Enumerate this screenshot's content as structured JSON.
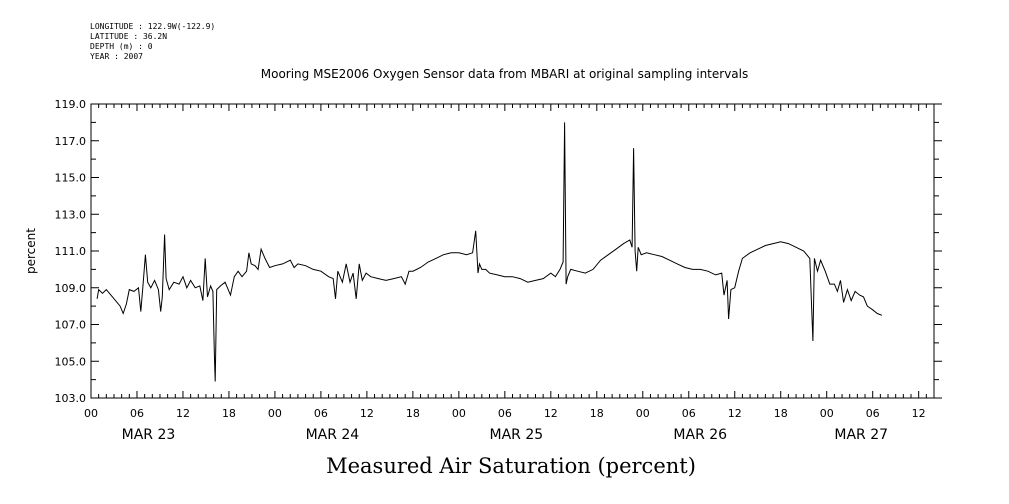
{
  "header": {
    "meta_lines": [
      "LONGITUDE : 122.9W(-122.9)",
      "LATITUDE : 36.2N",
      "DEPTH (m) : 0",
      "YEAR : 2007"
    ]
  },
  "chart_data": {
    "type": "line",
    "title": "Mooring MSE2006 Oxygen Sensor data from MBARI at original sampling intervals",
    "xlabel": "Measured Air Saturation (percent)",
    "ylabel": "percent",
    "ylim": [
      103.0,
      119.0
    ],
    "xlim_hours": [
      0,
      110
    ],
    "x_unit": "hours from MAR 23 00",
    "yticks": [
      "103.0",
      "105.0",
      "107.0",
      "109.0",
      "111.0",
      "113.0",
      "115.0",
      "117.0",
      "119.0"
    ],
    "ytick_values": [
      103,
      105,
      107,
      109,
      111,
      113,
      115,
      117,
      119
    ],
    "xtick_hours": [
      0,
      6,
      12,
      18,
      24,
      30,
      36,
      42,
      48,
      54,
      60,
      66,
      72,
      78,
      84,
      90,
      96,
      102,
      108
    ],
    "xtick_labels": [
      "00",
      "06",
      "12",
      "18",
      "00",
      "06",
      "12",
      "18",
      "00",
      "06",
      "12",
      "18",
      "00",
      "06",
      "12",
      "18",
      "00",
      "06",
      "12"
    ],
    "date_labels": [
      {
        "label": "MAR 23",
        "hour": 7.5
      },
      {
        "label": "MAR 24",
        "hour": 31.5
      },
      {
        "label": "MAR 25",
        "hour": 55.5
      },
      {
        "label": "MAR 26",
        "hour": 79.5
      },
      {
        "label": "MAR 27",
        "hour": 100.5
      }
    ],
    "series": [
      {
        "values": [
          [
            0.8,
            108.4
          ],
          [
            1.0,
            108.9
          ],
          [
            1.5,
            108.7
          ],
          [
            2.0,
            108.9
          ],
          [
            2.6,
            108.6
          ],
          [
            3.2,
            108.3
          ],
          [
            3.8,
            108.0
          ],
          [
            4.2,
            107.6
          ],
          [
            4.6,
            108.1
          ],
          [
            5.0,
            108.9
          ],
          [
            5.6,
            108.8
          ],
          [
            6.2,
            109.0
          ],
          [
            6.5,
            107.7
          ],
          [
            6.8,
            109.2
          ],
          [
            7.1,
            110.8
          ],
          [
            7.4,
            109.3
          ],
          [
            7.8,
            109.0
          ],
          [
            8.3,
            109.4
          ],
          [
            8.8,
            108.9
          ],
          [
            9.1,
            107.7
          ],
          [
            9.3,
            108.5
          ],
          [
            9.6,
            111.9
          ],
          [
            9.8,
            109.5
          ],
          [
            10.2,
            108.9
          ],
          [
            10.8,
            109.3
          ],
          [
            11.5,
            109.2
          ],
          [
            12.0,
            109.6
          ],
          [
            12.5,
            109.0
          ],
          [
            13.0,
            109.4
          ],
          [
            13.6,
            109.0
          ],
          [
            14.2,
            109.1
          ],
          [
            14.6,
            108.3
          ],
          [
            14.9,
            110.6
          ],
          [
            15.2,
            108.5
          ],
          [
            15.6,
            109.1
          ],
          [
            15.9,
            108.8
          ],
          [
            16.1,
            105.3
          ],
          [
            16.2,
            103.9
          ],
          [
            16.4,
            108.9
          ],
          [
            16.9,
            109.1
          ],
          [
            17.5,
            109.3
          ],
          [
            18.2,
            108.6
          ],
          [
            18.7,
            109.6
          ],
          [
            19.2,
            109.9
          ],
          [
            19.7,
            109.6
          ],
          [
            20.3,
            109.9
          ],
          [
            20.6,
            110.9
          ],
          [
            20.9,
            110.3
          ],
          [
            21.4,
            110.2
          ],
          [
            21.8,
            110.0
          ],
          [
            22.2,
            111.1
          ],
          [
            22.7,
            110.6
          ],
          [
            23.3,
            110.1
          ],
          [
            24.0,
            110.2
          ],
          [
            25.0,
            110.3
          ],
          [
            26.0,
            110.5
          ],
          [
            26.5,
            110.1
          ],
          [
            27.0,
            110.3
          ],
          [
            28.0,
            110.2
          ],
          [
            29.0,
            110.0
          ],
          [
            30.0,
            109.9
          ],
          [
            31.0,
            109.6
          ],
          [
            31.6,
            109.5
          ],
          [
            31.9,
            108.4
          ],
          [
            32.2,
            109.9
          ],
          [
            32.8,
            109.3
          ],
          [
            33.3,
            110.3
          ],
          [
            33.8,
            109.3
          ],
          [
            34.2,
            109.8
          ],
          [
            34.6,
            108.4
          ],
          [
            35.0,
            110.3
          ],
          [
            35.4,
            109.4
          ],
          [
            35.9,
            109.8
          ],
          [
            36.5,
            109.6
          ],
          [
            37.5,
            109.5
          ],
          [
            38.5,
            109.4
          ],
          [
            39.5,
            109.5
          ],
          [
            40.5,
            109.6
          ],
          [
            41.0,
            109.2
          ],
          [
            41.5,
            109.9
          ],
          [
            42.0,
            109.9
          ],
          [
            43.0,
            110.1
          ],
          [
            44.0,
            110.4
          ],
          [
            45.0,
            110.6
          ],
          [
            46.0,
            110.8
          ],
          [
            47.0,
            110.9
          ],
          [
            48.0,
            110.9
          ],
          [
            49.0,
            110.8
          ],
          [
            49.8,
            110.9
          ],
          [
            50.2,
            112.1
          ],
          [
            50.5,
            109.8
          ],
          [
            50.7,
            110.3
          ],
          [
            51.0,
            110.0
          ],
          [
            51.5,
            110.0
          ],
          [
            52.0,
            109.8
          ],
          [
            53.0,
            109.7
          ],
          [
            54.0,
            109.6
          ],
          [
            55.0,
            109.6
          ],
          [
            56.0,
            109.5
          ],
          [
            57.0,
            109.3
          ],
          [
            58.0,
            109.4
          ],
          [
            59.0,
            109.5
          ],
          [
            60.0,
            109.8
          ],
          [
            60.6,
            109.6
          ],
          [
            61.2,
            110.0
          ],
          [
            61.6,
            110.4
          ],
          [
            61.8,
            118.0
          ],
          [
            62.0,
            109.2
          ],
          [
            62.2,
            109.6
          ],
          [
            62.6,
            110.0
          ],
          [
            63.5,
            109.9
          ],
          [
            64.5,
            109.8
          ],
          [
            65.5,
            110.0
          ],
          [
            66.5,
            110.5
          ],
          [
            67.5,
            110.8
          ],
          [
            68.5,
            111.1
          ],
          [
            69.5,
            111.4
          ],
          [
            70.3,
            111.6
          ],
          [
            70.6,
            111.2
          ],
          [
            70.8,
            116.6
          ],
          [
            71.0,
            111.0
          ],
          [
            71.2,
            109.9
          ],
          [
            71.4,
            111.2
          ],
          [
            71.8,
            110.8
          ],
          [
            72.5,
            110.9
          ],
          [
            73.5,
            110.8
          ],
          [
            74.5,
            110.7
          ],
          [
            75.5,
            110.5
          ],
          [
            76.5,
            110.3
          ],
          [
            77.5,
            110.1
          ],
          [
            78.5,
            110.0
          ],
          [
            79.5,
            110.0
          ],
          [
            80.5,
            109.9
          ],
          [
            81.5,
            109.7
          ],
          [
            82.3,
            109.8
          ],
          [
            82.6,
            108.6
          ],
          [
            83.0,
            109.4
          ],
          [
            83.2,
            107.3
          ],
          [
            83.5,
            108.9
          ],
          [
            84.0,
            109.0
          ],
          [
            84.5,
            109.9
          ],
          [
            85.0,
            110.6
          ],
          [
            86.0,
            110.9
          ],
          [
            87.0,
            111.1
          ],
          [
            88.0,
            111.3
          ],
          [
            89.0,
            111.4
          ],
          [
            90.0,
            111.5
          ],
          [
            91.0,
            111.4
          ],
          [
            92.0,
            111.2
          ],
          [
            93.0,
            111.0
          ],
          [
            93.8,
            110.6
          ],
          [
            94.2,
            106.1
          ],
          [
            94.4,
            110.6
          ],
          [
            94.8,
            109.9
          ],
          [
            95.2,
            110.5
          ],
          [
            95.8,
            109.9
          ],
          [
            96.4,
            109.2
          ],
          [
            97.0,
            109.2
          ],
          [
            97.4,
            108.8
          ],
          [
            97.8,
            109.4
          ],
          [
            98.2,
            108.2
          ],
          [
            98.7,
            108.9
          ],
          [
            99.2,
            108.3
          ],
          [
            99.7,
            108.8
          ],
          [
            100.3,
            108.6
          ],
          [
            100.8,
            108.5
          ],
          [
            101.3,
            108.0
          ],
          [
            102.0,
            107.8
          ],
          [
            102.6,
            107.6
          ],
          [
            103.2,
            107.5
          ]
        ]
      }
    ]
  }
}
